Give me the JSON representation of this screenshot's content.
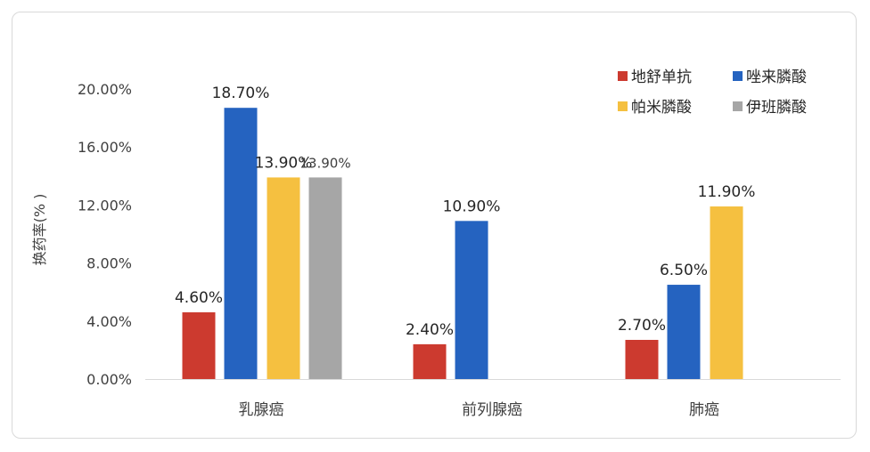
{
  "chart_data": {
    "type": "bar",
    "title": "",
    "xlabel": "",
    "ylabel": "换药率(% )",
    "categories": [
      "乳腺癌",
      "前列腺癌",
      "肺癌"
    ],
    "series": [
      {
        "name": "地舒单抗",
        "color": "#cc3a2f",
        "values": [
          4.6,
          2.4,
          2.7
        ],
        "labels": [
          "4.60%",
          "2.40%",
          "2.70%"
        ]
      },
      {
        "name": "唑来膦酸",
        "color": "#2563c0",
        "values": [
          18.7,
          10.9,
          6.5
        ],
        "labels": [
          "18.70%",
          "10.90%",
          "6.50%"
        ]
      },
      {
        "name": "帕米膦酸",
        "color": "#f5c040",
        "values": [
          13.9,
          null,
          11.9
        ],
        "labels": [
          "13.90%",
          "",
          "11.90%"
        ]
      },
      {
        "name": "伊班膦酸",
        "color": "#a6a6a6",
        "values": [
          13.9,
          null,
          null
        ],
        "labels": [
          "13.90%",
          "",
          ""
        ]
      }
    ],
    "ylim": [
      0,
      20
    ],
    "yticks": [
      "0.00%",
      "4.00%",
      "8.00%",
      "12.00%",
      "16.00%",
      "20.00%"
    ],
    "ytick_values": [
      0,
      4,
      8,
      12,
      16,
      20
    ],
    "grid": false,
    "legend": "top-right"
  }
}
